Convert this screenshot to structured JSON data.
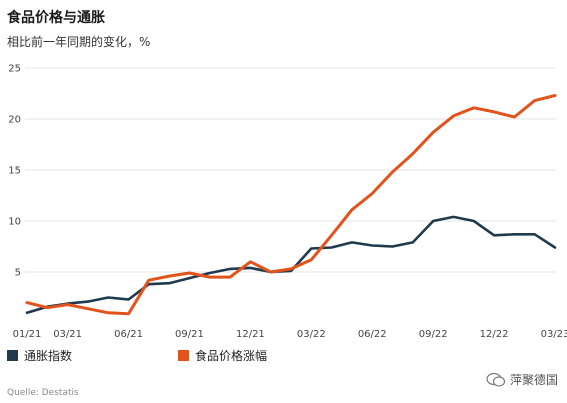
{
  "title": "食品价格与通胀",
  "subtitle": "相比前一年同期的变化，%",
  "source": "Quelle: Destatis",
  "watermark": "萍聚德国",
  "legend_label_inflation": "通胀指数",
  "legend_label_food": "食品价格涨幅",
  "colors": {
    "inflation": "#1f3a4d",
    "food": "#e2531b",
    "grid": "#e3e3e3"
  },
  "chart_data": {
    "type": "line",
    "title": "食品价格与通胀",
    "subtitle": "相比前一年同期的变化，%",
    "xlabel": "",
    "ylabel": "",
    "ylim": [
      0,
      25
    ],
    "yticks": [
      5,
      10,
      15,
      20,
      25
    ],
    "grid": true,
    "legend_position": "bottom",
    "x": [
      "01/21",
      "02/21",
      "03/21",
      "04/21",
      "05/21",
      "06/21",
      "07/21",
      "08/21",
      "09/21",
      "10/21",
      "11/21",
      "12/21",
      "01/22",
      "02/22",
      "03/22",
      "04/22",
      "05/22",
      "06/22",
      "07/22",
      "08/22",
      "09/22",
      "10/22",
      "11/22",
      "12/22",
      "01/23",
      "02/23",
      "03/23"
    ],
    "x_tick_labels": [
      "01/21",
      "03/21",
      "06/21",
      "09/21",
      "12/21",
      "03/22",
      "06/22",
      "09/22",
      "12/22",
      "03/23"
    ],
    "series": [
      {
        "name": "通胀指数",
        "color": "#1f3a4d",
        "values": [
          1.0,
          1.6,
          1.9,
          2.1,
          2.5,
          2.3,
          3.8,
          3.9,
          4.4,
          4.9,
          5.3,
          5.4,
          5.0,
          5.1,
          7.3,
          7.4,
          7.9,
          7.6,
          7.5,
          7.9,
          10.0,
          10.4,
          10.0,
          8.6,
          8.7,
          8.7,
          7.4
        ]
      },
      {
        "name": "食品价格涨幅",
        "color": "#e2531b",
        "values": [
          2.0,
          1.5,
          1.8,
          1.4,
          1.0,
          0.9,
          4.2,
          4.6,
          4.9,
          4.5,
          4.5,
          6.0,
          5.0,
          5.3,
          6.2,
          8.6,
          11.1,
          12.7,
          14.8,
          16.6,
          18.7,
          20.3,
          21.1,
          20.7,
          20.2,
          21.8,
          22.3
        ]
      }
    ]
  }
}
